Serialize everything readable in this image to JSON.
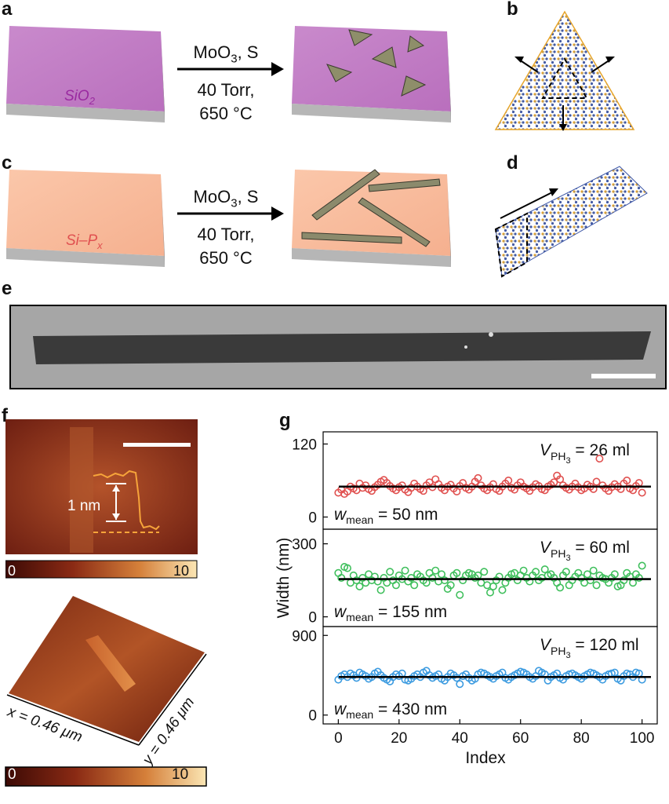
{
  "panels": {
    "a": "a",
    "b": "b",
    "c": "c",
    "d": "d",
    "e": "e",
    "f": "f",
    "g": "g"
  },
  "panel_a": {
    "substrate_label": "SiO2",
    "reaction_line1": "MoO3, S",
    "reaction_line2": "40 Torr,",
    "reaction_line3": "650 °C",
    "substrate_color": "#c57fc9"
  },
  "panel_c": {
    "substrate_label": "Si–Px",
    "reaction_line1": "MoO3, S",
    "reaction_line2": "40 Torr,",
    "reaction_line3": "650 °C",
    "substrate_color": "#f9bc9c"
  },
  "panel_f": {
    "height_label": "1 nm",
    "colorbar_min": "0",
    "colorbar_max": "10",
    "x_label": "x = 0.46 μm",
    "y_label": "y = 0.46 μm",
    "colorbar2_min": "0",
    "colorbar2_max": "10"
  },
  "chart_data": {
    "type": "scatter",
    "xlabel": "Index",
    "ylabel": "Width (nm)",
    "xticks": [
      0,
      20,
      40,
      60,
      80,
      100
    ],
    "xlim": [
      -5,
      105
    ],
    "subplots": [
      {
        "annotation_v": "V",
        "annotation_sub": "PH",
        "annotation_subsub": "3",
        "annotation_value": " = 26 ml",
        "mean_label_w": "w",
        "mean_label_sub": "mean",
        "mean_label_value": " = 50 nm",
        "mean": 50,
        "ylim": [
          -20,
          140
        ],
        "yticks": [
          0,
          120
        ],
        "color": "#e0504f",
        "values": [
          40,
          45,
          38,
          42,
          50,
          47,
          44,
          55,
          48,
          52,
          46,
          43,
          49,
          53,
          58,
          61,
          56,
          51,
          47,
          44,
          49,
          52,
          45,
          41,
          48,
          55,
          50,
          46,
          43,
          52,
          57,
          49,
          62,
          54,
          48,
          44,
          50,
          53,
          47,
          42,
          51,
          56,
          48,
          45,
          50,
          58,
          64,
          52,
          47,
          44,
          49,
          54,
          46,
          43,
          50,
          55,
          60,
          48,
          45,
          52,
          57,
          50,
          47,
          43,
          49,
          54,
          51,
          46,
          44,
          50,
          53,
          57,
          68,
          62,
          52,
          48,
          45,
          50,
          55,
          49,
          44,
          47,
          53,
          50,
          46,
          58,
          96,
          52,
          47,
          43,
          49,
          54,
          50,
          46,
          55,
          60,
          47,
          44,
          51,
          56,
          40
        ]
      },
      {
        "annotation_v": "V",
        "annotation_sub": "PH",
        "annotation_subsub": "3",
        "annotation_value": " = 60 ml",
        "mean_label_w": "w",
        "mean_label_sub": "mean",
        "mean_label_value": " = 155 nm",
        "mean": 155,
        "ylim": [
          -40,
          360
        ],
        "yticks": [
          0,
          300
        ],
        "color": "#3fbf5c",
        "values": [
          180,
          160,
          205,
          200,
          140,
          170,
          150,
          125,
          160,
          140,
          175,
          150,
          165,
          145,
          110,
          160,
          140,
          185,
          150,
          130,
          170,
          155,
          190,
          145,
          160,
          130,
          175,
          165,
          150,
          140,
          180,
          160,
          190,
          145,
          175,
          150,
          115,
          130,
          170,
          180,
          90,
          150,
          170,
          180,
          175,
          160,
          170,
          140,
          185,
          130,
          100,
          125,
          150,
          165,
          110,
          140,
          160,
          175,
          180,
          150,
          170,
          190,
          160,
          145,
          170,
          185,
          150,
          160,
          195,
          170,
          175,
          160,
          140,
          120,
          170,
          185,
          130,
          150,
          165,
          180,
          160,
          140,
          175,
          150,
          190,
          130,
          170,
          160,
          155,
          140,
          160,
          175,
          125,
          130,
          150,
          180,
          165,
          140,
          175,
          160,
          210
        ]
      },
      {
        "annotation_v": "V",
        "annotation_sub": "PH",
        "annotation_subsub": "3",
        "annotation_value": " = 120 ml",
        "mean_label_w": "w",
        "mean_label_sub": "mean",
        "mean_label_value": " = 430 nm",
        "mean": 430,
        "ylim": [
          -100,
          1000
        ],
        "yticks": [
          0,
          900
        ],
        "color": "#3c9be0",
        "values": [
          400,
          440,
          460,
          430,
          470,
          450,
          420,
          480,
          460,
          440,
          410,
          430,
          470,
          490,
          450,
          420,
          400,
          380,
          430,
          460,
          440,
          470,
          400,
          390,
          410,
          440,
          460,
          430,
          480,
          500,
          450,
          420,
          440,
          460,
          410,
          390,
          430,
          470,
          450,
          420,
          350,
          440,
          460,
          420,
          390,
          410,
          460,
          480,
          470,
          450,
          430,
          410,
          440,
          460,
          480,
          420,
          400,
          430,
          450,
          470,
          490,
          480,
          460,
          430,
          410,
          440,
          500,
          480,
          460,
          390,
          430,
          450,
          470,
          420,
          400,
          440,
          460,
          470,
          450,
          430,
          410,
          440,
          460,
          480,
          470,
          450,
          430,
          400,
          440,
          460,
          470,
          480,
          410,
          390,
          440,
          470,
          460,
          430,
          480,
          470,
          400
        ]
      }
    ]
  }
}
